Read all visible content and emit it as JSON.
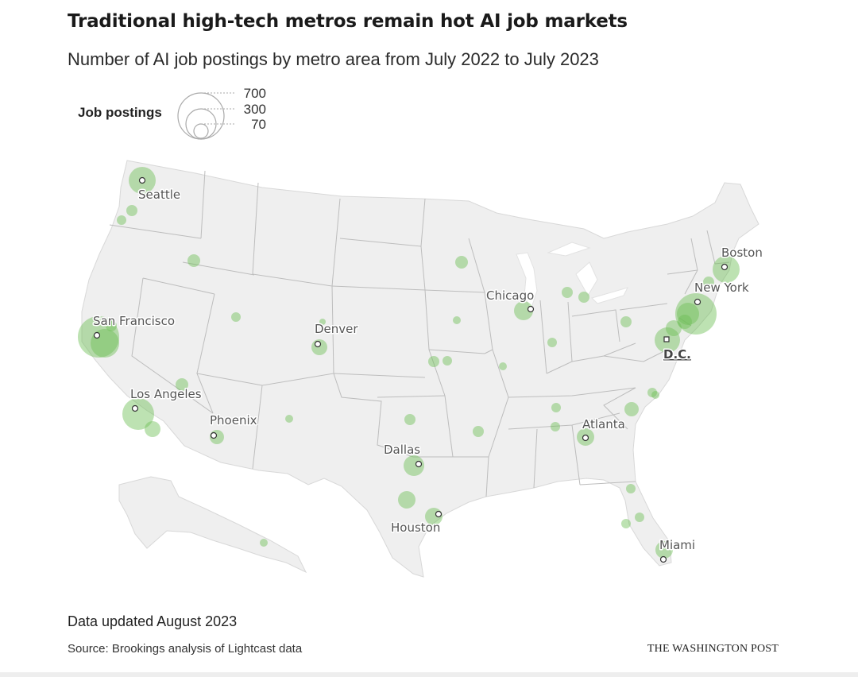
{
  "header": {
    "title": "Traditional high-tech metros remain hot AI job markets",
    "subtitle": "Number of AI job postings by metro area from July 2022 to July 2023"
  },
  "legend": {
    "title": "Job postings",
    "sizes": [
      {
        "value": 700,
        "label": "700"
      },
      {
        "value": 300,
        "label": "300"
      },
      {
        "value": 70,
        "label": "70"
      }
    ]
  },
  "chart_data": {
    "type": "proportional-symbol-map",
    "title": "Traditional high-tech metros remain hot AI job markets",
    "subtitle": "Number of AI job postings by metro area from July 2022 to July 2023",
    "region": "Contiguous United States",
    "size_legend": [
      700,
      300,
      70
    ],
    "labeled_metros": [
      "Seattle",
      "San Francisco",
      "Los Angeles",
      "Phoenix",
      "Denver",
      "Dallas",
      "Houston",
      "Chicago",
      "Atlanta",
      "Miami",
      "New York",
      "Boston",
      "D.C."
    ]
  },
  "city_labels": {
    "seattle": "Seattle",
    "san_francisco": "San Francisco",
    "los_angeles": "Los Angeles",
    "phoenix": "Phoenix",
    "denver": "Denver",
    "dallas": "Dallas",
    "houston": "Houston",
    "chicago": "Chicago",
    "atlanta": "Atlanta",
    "miami": "Miami",
    "new_york": "New York",
    "boston": "Boston",
    "dc": "D.C."
  },
  "footer": {
    "updated": "Data updated August 2023",
    "source": "Source: Brookings analysis of Lightcast data",
    "brand": "THE WASHINGTON POST"
  },
  "colors": {
    "bubble": "#6cbf55",
    "land": "#efefef",
    "border": "#bdbdbd"
  }
}
